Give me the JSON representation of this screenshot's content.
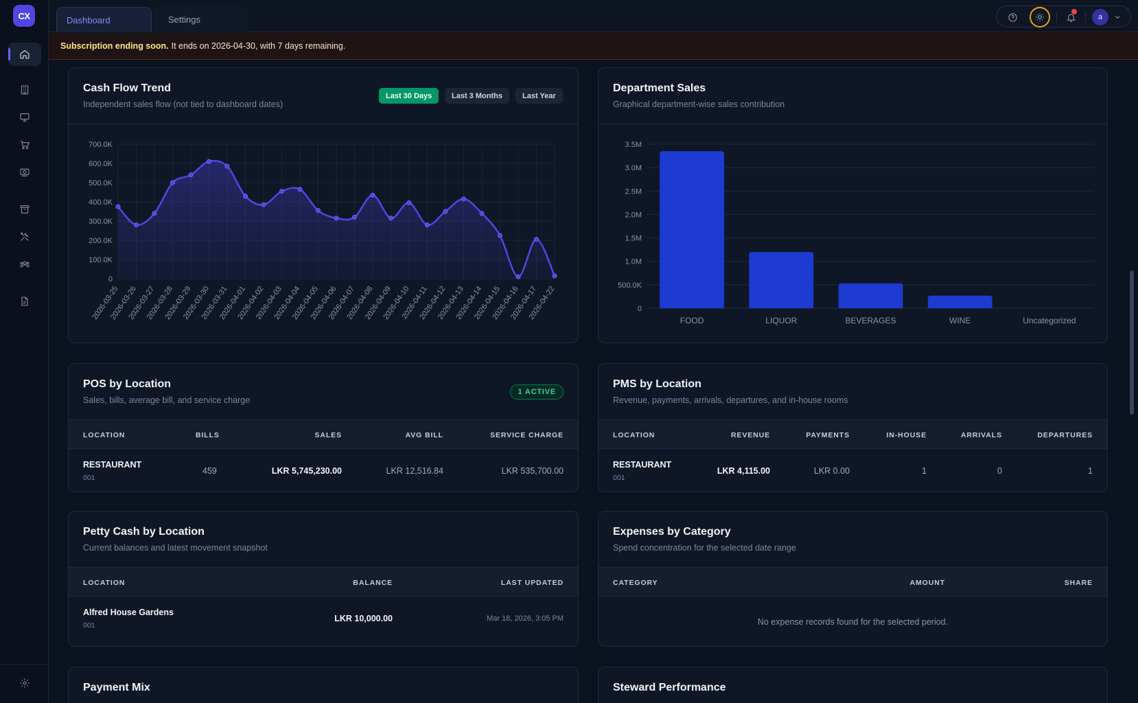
{
  "app": {
    "logo_text": "CX"
  },
  "sidebar": {
    "items": [
      {
        "name": "home",
        "icon": "home-icon",
        "active": true
      },
      {
        "name": "building",
        "icon": "building-icon"
      },
      {
        "name": "monitor",
        "icon": "monitor-icon"
      },
      {
        "name": "cart",
        "icon": "cart-icon"
      },
      {
        "name": "cash",
        "icon": "cash-icon"
      },
      {
        "name": "archive",
        "icon": "archive-icon"
      },
      {
        "name": "tools",
        "icon": "tools-icon"
      },
      {
        "name": "users",
        "icon": "users-icon"
      },
      {
        "name": "report",
        "icon": "report-icon"
      },
      {
        "name": "settings",
        "icon": "gear-icon"
      }
    ]
  },
  "header": {
    "tabs": [
      {
        "label": "Dashboard",
        "active": true
      },
      {
        "label": "Settings",
        "active": false
      }
    ],
    "avatar_initial": "a",
    "notification_dot_color": "#ef4444"
  },
  "banner": {
    "title": "Subscription ending soon.",
    "message": "It ends on 2026-04-30, with 7 days remaining."
  },
  "cash_flow": {
    "title": "Cash Flow Trend",
    "subtitle": "Independent sales flow (not tied to dashboard dates)",
    "ranges": [
      "Last 30 Days",
      "Last 3 Months",
      "Last Year"
    ],
    "active_range": "Last 30 Days"
  },
  "department_sales": {
    "title": "Department Sales",
    "subtitle": "Graphical department-wise sales contribution"
  },
  "chart_data": [
    {
      "type": "line",
      "title": "Cash Flow Trend",
      "x": [
        "2026-03-25",
        "2026-03-26",
        "2026-03-27",
        "2026-03-28",
        "2026-03-29",
        "2026-03-30",
        "2026-03-31",
        "2026-04-01",
        "2026-04-02",
        "2026-04-03",
        "2026-04-04",
        "2026-04-05",
        "2026-04-06",
        "2026-04-07",
        "2026-04-08",
        "2026-04-09",
        "2026-04-10",
        "2026-04-11",
        "2026-04-12",
        "2026-04-13",
        "2026-04-14",
        "2026-04-15",
        "2026-04-16",
        "2026-04-17",
        "2026-04-22"
      ],
      "values": [
        375000,
        280000,
        340000,
        500000,
        540000,
        610000,
        585000,
        430000,
        385000,
        455000,
        465000,
        355000,
        315000,
        320000,
        435000,
        315000,
        395000,
        280000,
        350000,
        415000,
        340000,
        225000,
        10000,
        205000,
        15000
      ],
      "yticks": [
        "0",
        "100.0K",
        "200.0K",
        "300.0K",
        "400.0K",
        "500.0K",
        "600.0K",
        "700.0K"
      ],
      "ylim": [
        0,
        700000
      ],
      "grid": true,
      "color": "#4f46e5"
    },
    {
      "type": "bar",
      "title": "Department Sales",
      "categories": [
        "FOOD",
        "LIQUOR",
        "BEVERAGES",
        "WINE",
        "Uncategorized"
      ],
      "values": [
        3350000,
        1200000,
        530000,
        270000,
        0
      ],
      "yticks": [
        "0",
        "500.0K",
        "1.0M",
        "1.5M",
        "2.0M",
        "2.5M",
        "3.0M",
        "3.5M"
      ],
      "ylim": [
        0,
        3500000
      ],
      "grid": true,
      "color": "#1d3bd1"
    }
  ],
  "pos": {
    "title": "POS by Location",
    "subtitle": "Sales, bills, average bill, and service charge",
    "badge": "1 ACTIVE",
    "columns": [
      "LOCATION",
      "BILLS",
      "SALES",
      "AVG BILL",
      "SERVICE CHARGE"
    ],
    "rows": [
      {
        "location": "RESTAURANT",
        "code": "001",
        "bills": "459",
        "sales": "LKR 5,745,230.00",
        "avg_bill": "LKR 12,516.84",
        "service_charge": "LKR 535,700.00"
      }
    ]
  },
  "pms": {
    "title": "PMS by Location",
    "subtitle": "Revenue, payments, arrivals, departures, and in-house rooms",
    "columns": [
      "LOCATION",
      "REVENUE",
      "PAYMENTS",
      "IN-HOUSE",
      "ARRIVALS",
      "DEPARTURES"
    ],
    "rows": [
      {
        "location": "RESTAURANT",
        "code": "001",
        "revenue": "LKR 4,115.00",
        "payments": "LKR 0.00",
        "in_house": "1",
        "arrivals": "0",
        "departures": "1"
      }
    ]
  },
  "petty_cash": {
    "title": "Petty Cash by Location",
    "subtitle": "Current balances and latest movement snapshot",
    "columns": [
      "LOCATION",
      "BALANCE",
      "LAST UPDATED"
    ],
    "rows": [
      {
        "location": "Alfred House Gardens",
        "code": "001",
        "balance": "LKR 10,000.00",
        "last_updated": "Mar 18, 2026, 3:05 PM"
      }
    ]
  },
  "expenses": {
    "title": "Expenses by Category",
    "subtitle": "Spend concentration for the selected date range",
    "columns": [
      "CATEGORY",
      "AMOUNT",
      "SHARE"
    ],
    "empty": "No expense records found for the selected period."
  },
  "payment_mix": {
    "title": "Payment Mix"
  },
  "steward": {
    "title": "Steward Performance"
  }
}
